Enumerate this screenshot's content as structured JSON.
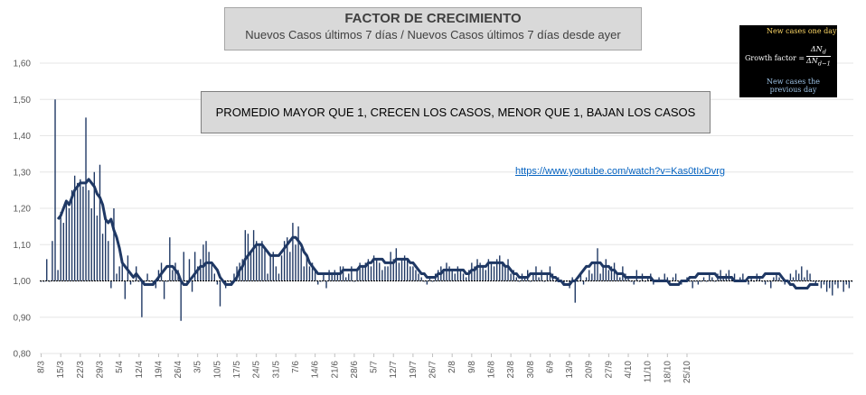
{
  "title": "FACTOR DE CRECIMIENTO",
  "subtitle": "Nuevos Casos últimos 7 días / Nuevos Casos últimos 7 días desde ayer",
  "note": "PROMEDIO MAYOR QUE 1, CRECEN LOS CASOS, MENOR QUE 1, BAJAN LOS CASOS",
  "link": "https://www.youtube.com/watch?v=Kas0tIxDvrg",
  "formula": {
    "top": "New cases one day",
    "main": "Growth factor =",
    "num": "ΔN",
    "num_sub": "d",
    "den": "ΔN",
    "den_sub": "d−1",
    "bottom_1": "New cases the",
    "bottom_2": "previous day"
  },
  "colors": {
    "series": "#1f3864",
    "baseline": "#000000"
  },
  "chart_data": {
    "type": "bar",
    "title": "FACTOR DE CRECIMIENTO",
    "subtitle": "Nuevos Casos últimos 7 días / Nuevos Casos últimos 7 días desde ayer",
    "ylim": [
      0.8,
      1.6
    ],
    "yticks": [
      "0,80",
      "0,90",
      "1,00",
      "1,10",
      "1,20",
      "1,30",
      "1,40",
      "1,50",
      "1,60"
    ],
    "baseline": 1.0,
    "grid": true,
    "x_start": "8/3",
    "x_tick_labels": [
      "8/3",
      "15/3",
      "22/3",
      "29/3",
      "5/4",
      "12/4",
      "19/4",
      "26/4",
      "3/5",
      "10/5",
      "17/5",
      "24/5",
      "31/5",
      "7/6",
      "14/6",
      "21/6",
      "28/6",
      "5/7",
      "12/7",
      "19/7",
      "26/7",
      "2/8",
      "9/8",
      "16/8",
      "23/8",
      "30/8",
      "6/9",
      "13/9",
      "20/9",
      "27/9",
      "4/10",
      "11/10",
      "18/10",
      "25/10"
    ],
    "series": [
      {
        "type": "bar",
        "values": [
          1.0,
          1.0,
          1.06,
          1.0,
          1.11,
          1.5,
          1.03,
          1.19,
          1.16,
          1.22,
          1.2,
          1.25,
          1.29,
          1.27,
          1.28,
          1.26,
          1.45,
          1.25,
          1.2,
          1.3,
          1.18,
          1.32,
          1.13,
          1.17,
          1.11,
          0.98,
          1.2,
          1.02,
          1.04,
          1.05,
          0.95,
          1.07,
          0.99,
          1.0,
          1.04,
          1.0,
          0.9,
          1.0,
          1.02,
          1.0,
          0.99,
          0.98,
          1.03,
          1.05,
          0.95,
          1.0,
          1.12,
          1.03,
          1.05,
          1.03,
          0.89,
          1.08,
          1.0,
          1.06,
          0.97,
          1.08,
          1.04,
          1.06,
          1.1,
          1.11,
          1.08,
          1.05,
          1.02,
          0.99,
          0.93,
          1.0,
          0.98,
          1.0,
          0.99,
          1.02,
          1.04,
          1.05,
          1.06,
          1.14,
          1.13,
          1.08,
          1.14,
          1.11,
          1.1,
          1.11,
          1.09,
          1.02,
          1.07,
          1.08,
          1.04,
          1.02,
          1.07,
          1.11,
          1.12,
          1.08,
          1.16,
          1.1,
          1.15,
          1.09,
          1.04,
          1.07,
          1.04,
          1.05,
          1.03,
          0.99,
          1.0,
          1.02,
          0.98,
          1.03,
          1.02,
          1.03,
          1.02,
          1.04,
          1.04,
          1.01,
          1.02,
          1.04,
          1.0,
          1.03,
          1.05,
          1.04,
          1.05,
          1.06,
          1.04,
          1.07,
          1.06,
          1.05,
          1.03,
          1.04,
          1.04,
          1.08,
          1.06,
          1.09,
          1.05,
          1.06,
          1.07,
          1.06,
          1.04,
          1.04,
          1.03,
          1.02,
          1.01,
          1.0,
          0.99,
          1.01,
          1.0,
          1.02,
          1.03,
          1.04,
          1.03,
          1.05,
          1.04,
          1.03,
          1.02,
          1.04,
          1.03,
          1.02,
          1.01,
          1.03,
          1.05,
          1.04,
          1.06,
          1.05,
          1.04,
          1.03,
          1.06,
          1.05,
          1.04,
          1.06,
          1.07,
          1.05,
          1.04,
          1.06,
          1.02,
          1.03,
          1.01,
          1.0,
          1.02,
          1.01,
          1.03,
          1.0,
          1.02,
          1.04,
          1.01,
          1.03,
          1.0,
          1.02,
          1.04,
          1.02,
          1.0,
          1.01,
          1.0,
          0.99,
          1.0,
          0.98,
          1.01,
          0.94,
          1.0,
          1.02,
          0.99,
          1.01,
          1.03,
          1.02,
          1.05,
          1.09,
          1.02,
          1.04,
          1.06,
          1.03,
          1.04,
          1.05,
          1.02,
          1.01,
          1.04,
          1.02,
          1.01,
          1.0,
          0.99,
          1.03,
          1.0,
          1.02,
          1.0,
          1.01,
          1.02,
          0.99,
          1.0,
          1.01,
          1.0,
          1.02,
          1.01,
          1.0,
          1.01,
          1.02,
          1.0,
          0.99,
          1.0,
          1.01,
          1.0,
          0.98,
          1.0,
          0.99,
          1.0,
          1.01,
          1.0,
          1.02,
          1.01,
          1.0,
          1.02,
          1.03,
          1.01,
          1.02,
          1.03,
          1.01,
          1.02,
          1.0,
          1.01,
          1.02,
          1.0,
          0.99,
          1.01,
          1.0,
          1.02,
          1.01,
          1.0,
          0.99,
          1.0,
          0.98,
          1.01,
          1.02,
          1.01,
          1.0,
          0.99,
          1.0,
          1.02,
          1.01,
          1.03,
          1.02,
          1.04,
          1.01,
          1.03,
          1.02,
          1.0,
          0.99,
          1.0,
          0.98,
          0.99,
          0.97,
          0.98,
          0.96,
          0.99,
          0.98,
          1.0,
          0.97,
          0.99,
          0.98,
          1.0
        ]
      },
      {
        "type": "line",
        "values": [
          null,
          null,
          null,
          null,
          null,
          null,
          1.17,
          1.18,
          1.2,
          1.22,
          1.21,
          1.23,
          1.25,
          1.26,
          1.27,
          1.27,
          1.27,
          1.28,
          1.27,
          1.26,
          1.24,
          1.23,
          1.21,
          1.17,
          1.16,
          1.17,
          1.14,
          1.12,
          1.09,
          1.05,
          1.04,
          1.03,
          1.02,
          1.01,
          1.02,
          1.01,
          1.0,
          0.99,
          0.99,
          0.99,
          0.99,
          1.0,
          1.01,
          1.02,
          1.03,
          1.04,
          1.04,
          1.04,
          1.03,
          1.02,
          1.0,
          0.99,
          0.99,
          1.0,
          1.01,
          1.02,
          1.03,
          1.04,
          1.04,
          1.05,
          1.05,
          1.05,
          1.04,
          1.03,
          1.01,
          1.0,
          0.99,
          0.99,
          0.99,
          1.0,
          1.01,
          1.03,
          1.04,
          1.06,
          1.07,
          1.08,
          1.09,
          1.1,
          1.1,
          1.1,
          1.09,
          1.08,
          1.07,
          1.07,
          1.07,
          1.07,
          1.08,
          1.09,
          1.1,
          1.11,
          1.12,
          1.12,
          1.11,
          1.1,
          1.08,
          1.07,
          1.05,
          1.04,
          1.03,
          1.02,
          1.02,
          1.02,
          1.02,
          1.02,
          1.02,
          1.02,
          1.02,
          1.02,
          1.03,
          1.03,
          1.03,
          1.03,
          1.03,
          1.03,
          1.04,
          1.04,
          1.04,
          1.05,
          1.05,
          1.06,
          1.06,
          1.06,
          1.06,
          1.05,
          1.05,
          1.05,
          1.05,
          1.06,
          1.06,
          1.06,
          1.06,
          1.06,
          1.05,
          1.05,
          1.04,
          1.03,
          1.02,
          1.02,
          1.01,
          1.01,
          1.01,
          1.01,
          1.02,
          1.02,
          1.03,
          1.03,
          1.03,
          1.03,
          1.03,
          1.03,
          1.03,
          1.03,
          1.02,
          1.02,
          1.03,
          1.03,
          1.04,
          1.04,
          1.04,
          1.04,
          1.05,
          1.05,
          1.05,
          1.05,
          1.05,
          1.05,
          1.04,
          1.04,
          1.03,
          1.02,
          1.02,
          1.01,
          1.01,
          1.01,
          1.01,
          1.02,
          1.02,
          1.02,
          1.02,
          1.02,
          1.02,
          1.02,
          1.02,
          1.01,
          1.01,
          1.0,
          1.0,
          0.99,
          0.99,
          0.99,
          1.0,
          1.0,
          1.01,
          1.02,
          1.03,
          1.04,
          1.04,
          1.05,
          1.05,
          1.05,
          1.05,
          1.04,
          1.04,
          1.04,
          1.03,
          1.03,
          1.02,
          1.02,
          1.02,
          1.01,
          1.01,
          1.01,
          1.01,
          1.01,
          1.01,
          1.01,
          1.01,
          1.01,
          1.01,
          1.0,
          1.0,
          1.0,
          1.0,
          1.0,
          1.0,
          0.99,
          0.99,
          0.99,
          0.99,
          1.0,
          1.0,
          1.0,
          1.01,
          1.01,
          1.01,
          1.02,
          1.02,
          1.02,
          1.02,
          1.02,
          1.02,
          1.02,
          1.01,
          1.01,
          1.01,
          1.01,
          1.01,
          1.01,
          1.0,
          1.0,
          1.0,
          1.0,
          1.0,
          1.01,
          1.01,
          1.01,
          1.01,
          1.01,
          1.01,
          1.02,
          1.02,
          1.02,
          1.02,
          1.02,
          1.02,
          1.01,
          1.0,
          1.0,
          0.99,
          0.99,
          0.98,
          0.98,
          0.98,
          0.98,
          0.98,
          0.99,
          0.99,
          0.99,
          0.99
        ]
      }
    ]
  }
}
